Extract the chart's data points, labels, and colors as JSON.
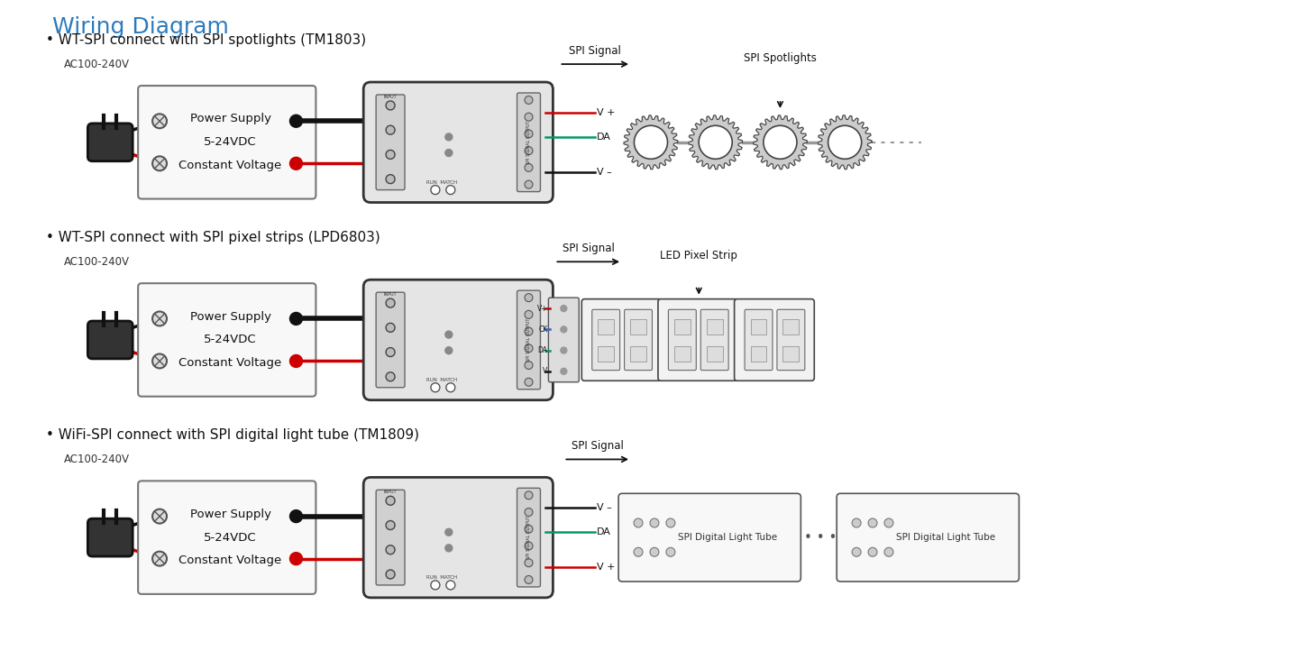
{
  "title": "Wiring Diagram",
  "title_color": "#2b7bbf",
  "bg_color": "#ffffff",
  "diagrams": [
    {
      "label": "• WT-SPI connect with SPI spotlights (TM1803)",
      "output_label": "SPI Signal",
      "output_label2": "SPI Spotlights",
      "type": "spotlights"
    },
    {
      "label": "• WT-SPI connect with SPI pixel strips (LPD6803)",
      "output_label": "SPI Signal",
      "output_label2": "LED Pixel Strip",
      "type": "strip"
    },
    {
      "label": "• WiFi-SPI connect with SPI digital light tube (TM1809)",
      "output_label": "SPI Signal",
      "output_label2": "",
      "type": "tube"
    }
  ],
  "wire_black": "#111111",
  "wire_red": "#cc0000",
  "wire_green": "#009966",
  "wire_blue": "#3366cc",
  "wire_gray": "#999999",
  "box_edge": "#444444",
  "box_face": "#f2f2f2",
  "ctrl_face": "#e5e5e5",
  "ctrl_edge": "#333333"
}
